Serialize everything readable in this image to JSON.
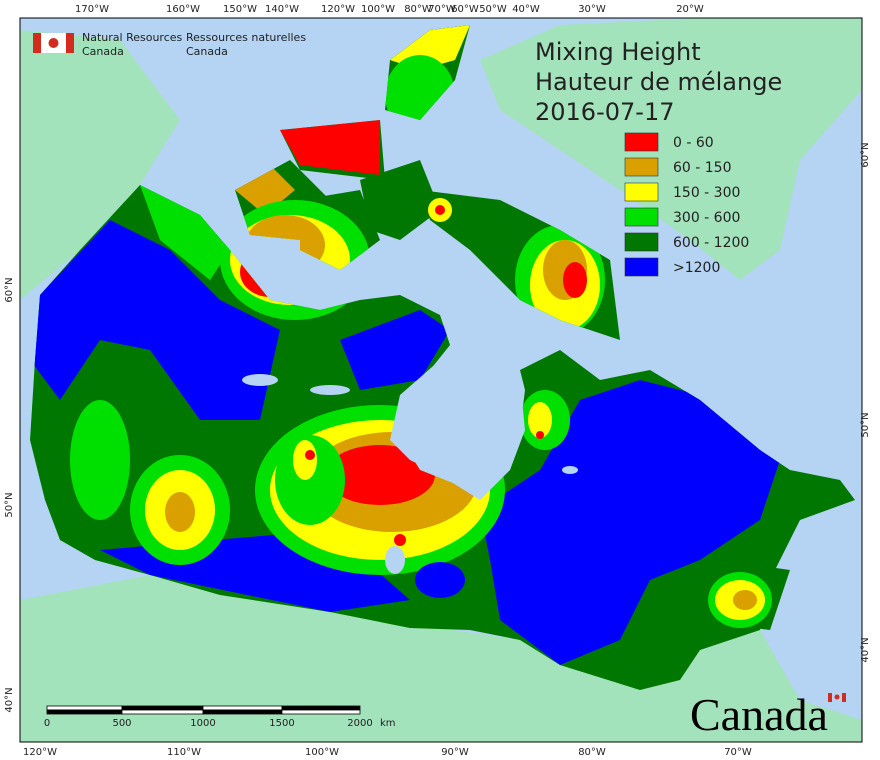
{
  "header": {
    "org_en": [
      "Natural Resources",
      "Canada"
    ],
    "org_fr": [
      "Ressources naturelles",
      "Canada"
    ]
  },
  "title": [
    "Mixing Height",
    "Hauteur de mélange",
    "2016-07-17"
  ],
  "legend": [
    {
      "label": "0 - 60",
      "color": "#ff0000"
    },
    {
      "label": "60 - 150",
      "color": "#daa000"
    },
    {
      "label": "150 - 300",
      "color": "#ffff00"
    },
    {
      "label": "300 - 600",
      "color": "#00e000"
    },
    {
      "label": "600 - 1200",
      "color": "#007800"
    },
    {
      "label": ">1200",
      "color": "#0000ff"
    }
  ],
  "graticule": {
    "top": [
      "170°W",
      "160°W",
      "150°W",
      "140°W",
      "120°W",
      "100°W",
      "80°W",
      "70°W",
      "60°W",
      "50°W",
      "40°W",
      "30°W",
      "20°W"
    ],
    "bottom": [
      "120°W",
      "110°W",
      "100°W",
      "90°W",
      "80°W",
      "70°W"
    ],
    "left": [
      "60°N",
      "50°N",
      "40°N"
    ],
    "right": [
      "60°N",
      "50°N",
      "40°N"
    ]
  },
  "scale_bar": {
    "labels": [
      "0",
      "500",
      "1000",
      "1500",
      "2000"
    ],
    "unit": "km"
  },
  "wordmark": "Canada"
}
